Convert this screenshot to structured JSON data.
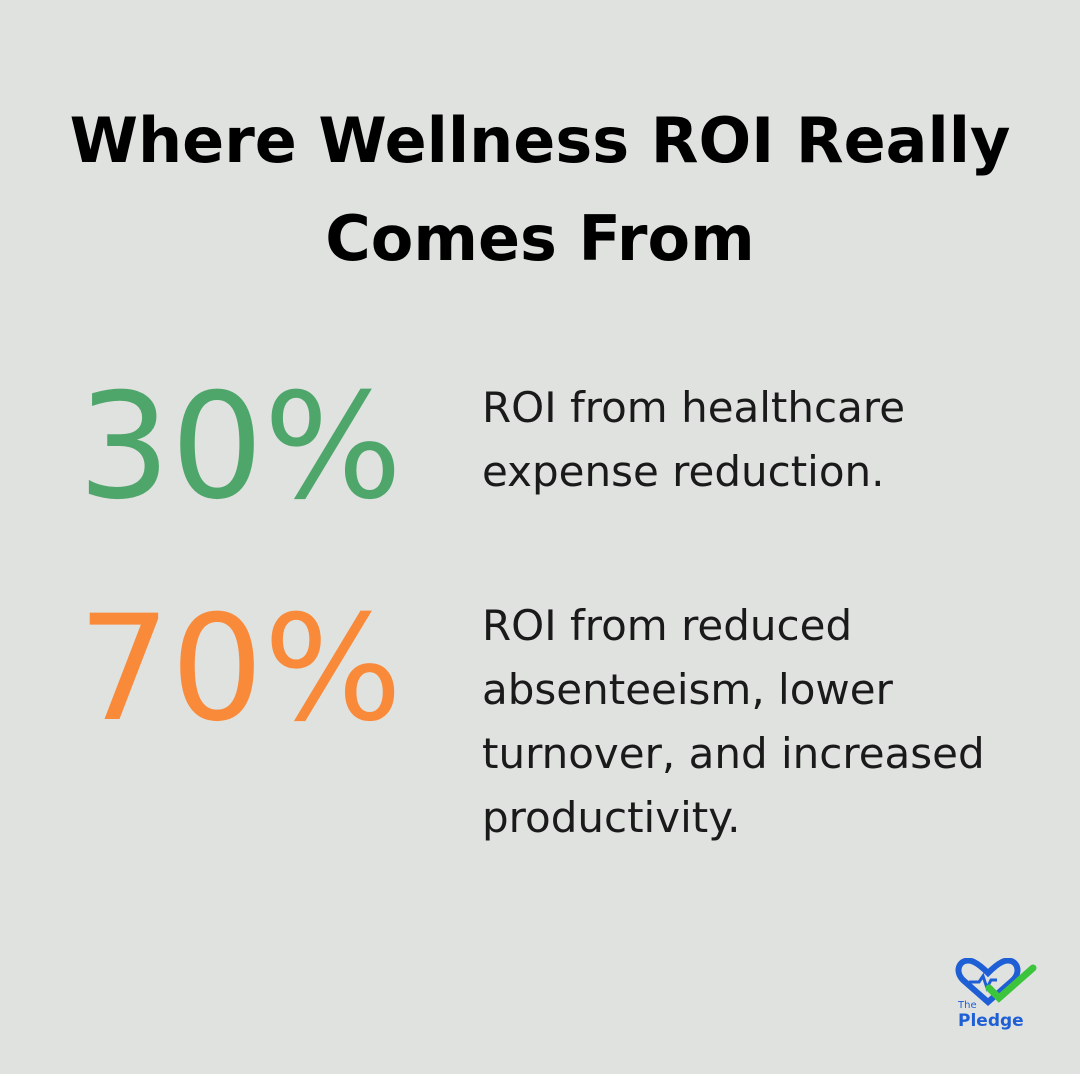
{
  "header": {
    "title": "Where Wellness ROI Really Comes From"
  },
  "stats": [
    {
      "value": "30%",
      "description": "ROI from healthcare expense reduction.",
      "color": "#4fa66b"
    },
    {
      "value": "70%",
      "description": "ROI from reduced absenteeism, lower turnover, and increased productivity.",
      "color": "#f98a3a"
    }
  ],
  "logo": {
    "small": "The",
    "name": "Pledge"
  }
}
